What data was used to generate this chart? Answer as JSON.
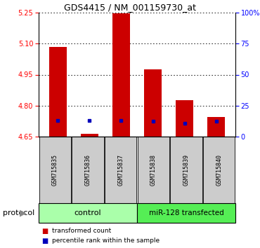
{
  "title": "GDS4415 / NM_001159730_at",
  "samples": [
    "GSM715835",
    "GSM715836",
    "GSM715837",
    "GSM715838",
    "GSM715839",
    "GSM715840"
  ],
  "transformed_counts": [
    5.085,
    4.665,
    5.245,
    4.975,
    4.825,
    4.745
  ],
  "ymin": 4.65,
  "ymax": 5.25,
  "yticks": [
    4.65,
    4.8,
    4.95,
    5.1,
    5.25
  ],
  "right_yticks": [
    0,
    25,
    50,
    75,
    100
  ],
  "right_ytick_labels": [
    "0",
    "25",
    "50",
    "75",
    "100%"
  ],
  "bar_bottom": 4.65,
  "bar_color": "#cc0000",
  "blue_color": "#0000bb",
  "blue_y_values": [
    4.728,
    4.728,
    4.728,
    4.724,
    4.716,
    4.724
  ],
  "control_label": "control",
  "transfected_label": "miR-128 transfected",
  "protocol_label": "protocol",
  "legend_red": "transformed count",
  "legend_blue": "percentile rank within the sample",
  "bar_width": 0.55,
  "background_color": "#ffffff",
  "label_box_color": "#cccccc",
  "control_bg": "#aaffaa",
  "transfected_bg": "#55ee55"
}
